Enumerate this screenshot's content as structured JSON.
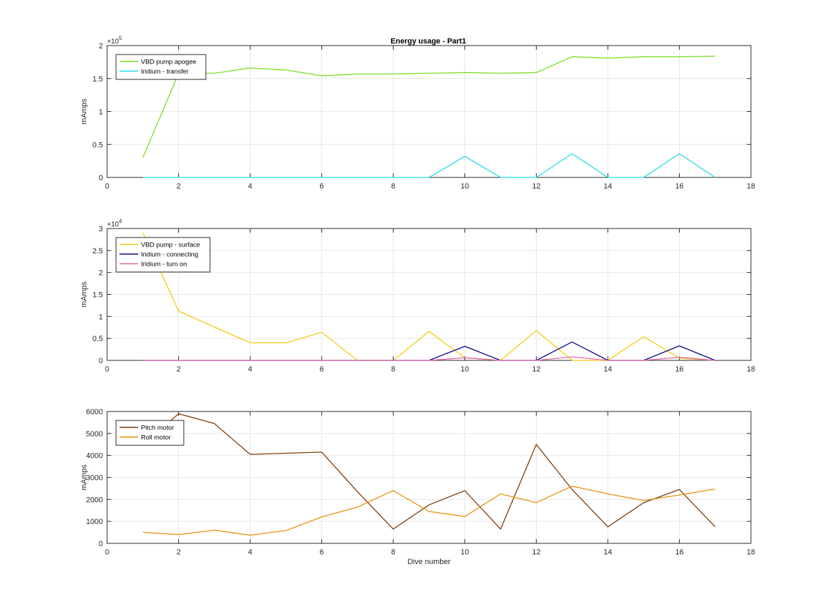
{
  "figure": {
    "title": "Energy usage - Part1"
  },
  "chart_data": [
    {
      "type": "line",
      "title": "Energy usage - Part1",
      "xlabel": "",
      "ylabel": "mAmps",
      "xlim": [
        0,
        18
      ],
      "ylim": [
        0,
        200000
      ],
      "exponent_label": "×10",
      "exponent_power": "5",
      "grid": true,
      "legend_position": "top-left",
      "x_ticks": [
        0,
        2,
        4,
        6,
        8,
        10,
        12,
        14,
        16,
        18
      ],
      "x_tick_labels": [
        "0",
        "2",
        "4",
        "6",
        "8",
        "10",
        "12",
        "14",
        "16",
        "18"
      ],
      "y_ticks": [
        0,
        50000,
        100000,
        150000,
        200000
      ],
      "y_tick_labels": [
        "0",
        "0.5",
        "1",
        "1.5",
        "2"
      ],
      "x": [
        1,
        2,
        3,
        4,
        5,
        6,
        7,
        8,
        9,
        10,
        11,
        12,
        13,
        14,
        15,
        16,
        17
      ],
      "series": [
        {
          "name": "VBD pump apogee",
          "color": "#77dd22",
          "values": [
            30000,
            158000,
            158000,
            166000,
            163000,
            154000,
            157000,
            157000,
            158000,
            159000,
            158000,
            159000,
            183000,
            181000,
            183000,
            183000,
            184000
          ]
        },
        {
          "name": "Iridium - transfer",
          "color": "#22dde6",
          "values": [
            0,
            0,
            0,
            0,
            0,
            0,
            0,
            0,
            0,
            32000,
            0,
            0,
            36000,
            0,
            0,
            36000,
            0
          ]
        }
      ]
    },
    {
      "type": "line",
      "title": "",
      "xlabel": "",
      "ylabel": "mAmps",
      "xlim": [
        0,
        18
      ],
      "ylim": [
        0,
        30000
      ],
      "exponent_label": "×10",
      "exponent_power": "4",
      "grid": true,
      "legend_position": "top-left",
      "x_ticks": [
        0,
        2,
        4,
        6,
        8,
        10,
        12,
        14,
        16,
        18
      ],
      "x_tick_labels": [
        "0",
        "2",
        "4",
        "6",
        "8",
        "10",
        "12",
        "14",
        "16",
        "18"
      ],
      "y_ticks": [
        0,
        5000,
        10000,
        15000,
        20000,
        25000,
        30000
      ],
      "y_tick_labels": [
        "0",
        "0.5",
        "1",
        "1.5",
        "2",
        "2.5",
        "3"
      ],
      "x": [
        1,
        2,
        3,
        4,
        5,
        6,
        7,
        8,
        9,
        10,
        11,
        12,
        13,
        14,
        15,
        16,
        17
      ],
      "series": [
        {
          "name": "VBD pump - surface",
          "color": "#f2cc0c",
          "values": [
            29000,
            11200,
            7600,
            4000,
            4000,
            6400,
            0,
            0,
            6600,
            600,
            0,
            6800,
            0,
            0,
            5400,
            500,
            0
          ]
        },
        {
          "name": "Iridium - connecting",
          "color": "#000080",
          "values": [
            0,
            0,
            0,
            0,
            0,
            0,
            0,
            0,
            0,
            3200,
            0,
            0,
            4200,
            0,
            0,
            3300,
            0
          ]
        },
        {
          "name": "Iridium - turn on",
          "color": "#e066a8",
          "values": [
            0,
            0,
            0,
            0,
            0,
            0,
            0,
            0,
            0,
            600,
            0,
            0,
            800,
            0,
            0,
            700,
            0
          ]
        }
      ]
    },
    {
      "type": "line",
      "title": "",
      "xlabel": "Dive number",
      "ylabel": "mAmps",
      "xlim": [
        0,
        18
      ],
      "ylim": [
        0,
        6000
      ],
      "grid": true,
      "legend_position": "top-left",
      "x_ticks": [
        0,
        2,
        4,
        6,
        8,
        10,
        12,
        14,
        16,
        18
      ],
      "x_tick_labels": [
        "0",
        "2",
        "4",
        "6",
        "8",
        "10",
        "12",
        "14",
        "16",
        "18"
      ],
      "y_ticks": [
        0,
        1000,
        2000,
        3000,
        4000,
        5000,
        6000
      ],
      "y_tick_labels": [
        "0",
        "1000",
        "2000",
        "3000",
        "4000",
        "5000",
        "6000"
      ],
      "x": [
        1,
        2,
        3,
        4,
        5,
        6,
        7,
        8,
        9,
        10,
        11,
        12,
        13,
        14,
        15,
        16,
        17
      ],
      "series": [
        {
          "name": "Pitch motor",
          "color": "#7a3a08",
          "values": [
            4500,
            5900,
            5450,
            4050,
            4100,
            4150,
            2350,
            650,
            1750,
            2400,
            650,
            4500,
            2450,
            750,
            1850,
            2450,
            750
          ]
        },
        {
          "name": "Roll motor",
          "color": "#e8900c",
          "values": [
            500,
            400,
            600,
            370,
            580,
            1200,
            1650,
            2400,
            1450,
            1220,
            2250,
            1850,
            2600,
            2250,
            1950,
            2200,
            2470
          ]
        }
      ]
    }
  ]
}
